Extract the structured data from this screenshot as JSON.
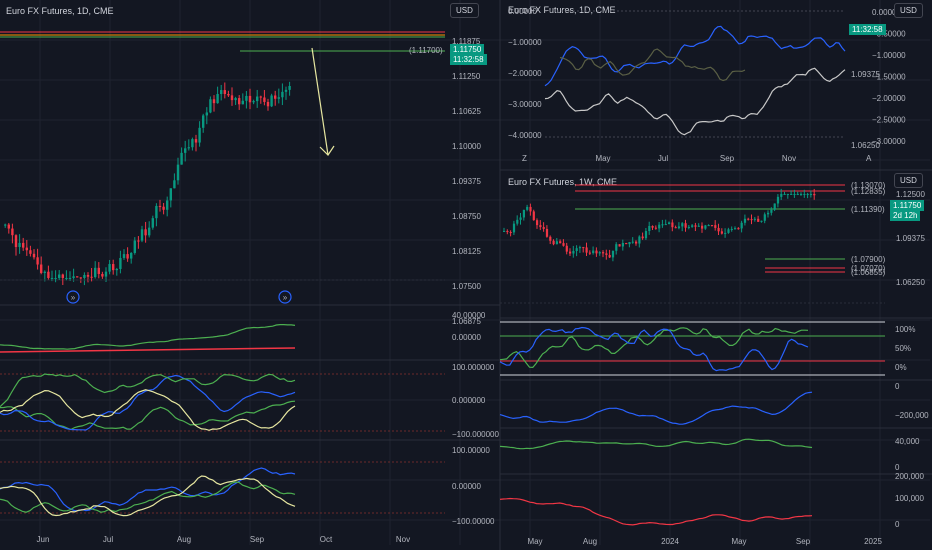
{
  "colors": {
    "bg": "#131722",
    "up": "#089981",
    "down": "#f23645",
    "green": "#4caf50",
    "blue": "#2962ff",
    "red": "#f23645",
    "grey": "#9e9e9e",
    "olive": "#5a5f45",
    "yellow": "#e6e6a0",
    "grid": "#1f2330"
  },
  "left": {
    "title": "Euro FX Futures, 1D, CME",
    "currency": "USD",
    "price_tag": "1.11750",
    "timer_tag": "11:32:58",
    "level_label": "(1.11700)",
    "price_ticks": [
      "1.11875",
      "1.11250",
      "1.10625",
      "1.10000",
      "1.09375",
      "1.08750",
      "1.08125",
      "1.07500",
      "1.06875"
    ],
    "x_ticks": [
      "Jun",
      "Jul",
      "Aug",
      "Sep",
      "Oct",
      "Nov"
    ],
    "osc1_ticks": [
      "40.00000",
      "0.00000"
    ],
    "osc2_ticks": [
      "100.000000",
      "0.000000",
      "−100.000000"
    ],
    "osc3_ticks": [
      "100.00000",
      "0.00000",
      "−100.00000"
    ]
  },
  "top_right": {
    "title": "Euro FX Futures, 1D, CME",
    "currency": "USD",
    "left_ticks": [
      "0.00000",
      "−1.00000",
      "−2.00000",
      "−3.00000",
      "−4.00000"
    ],
    "right_ticks": [
      "0.00000",
      "−0.50000",
      "−1.00000",
      "−1.50000",
      "−2.00000",
      "−2.50000",
      "−3.00000"
    ],
    "price_labels": [
      "1.09375",
      "1.06250"
    ],
    "timer_tag": "11:32:58",
    "x_ticks": [
      "May",
      "Jul",
      "Sep",
      "Nov"
    ],
    "corner_left": "Z",
    "corner_right": "A"
  },
  "bottom_right": {
    "title": "Euro FX Futures, 1W, CME",
    "currency": "USD",
    "price_tag": "1.11750",
    "timer_tag": "2d 12h",
    "price_ticks": [
      "1.12500",
      "1.09375",
      "1.06250"
    ],
    "levels": [
      {
        "label": "(1.13070)",
        "color": "#f23645"
      },
      {
        "label": "(1.12835)",
        "color": "#f23645"
      },
      {
        "label": "(1.11390)",
        "color": "#4caf50"
      },
      {
        "label": "(1.07900)",
        "color": "#4caf50"
      },
      {
        "label": "(1.07070)",
        "color": "#f23645"
      },
      {
        "label": "(1.06855)",
        "color": "#f23645"
      }
    ],
    "pct_ticks": [
      "100%",
      "50%",
      "0%"
    ],
    "net1_ticks": [
      "0",
      "−200,000"
    ],
    "net2_ticks": [
      "40,000",
      "0"
    ],
    "net3_ticks": [
      "200,000",
      "100,000",
      "0"
    ],
    "x_ticks": [
      "May",
      "Aug",
      "2024",
      "May",
      "Sep",
      "2025"
    ]
  }
}
